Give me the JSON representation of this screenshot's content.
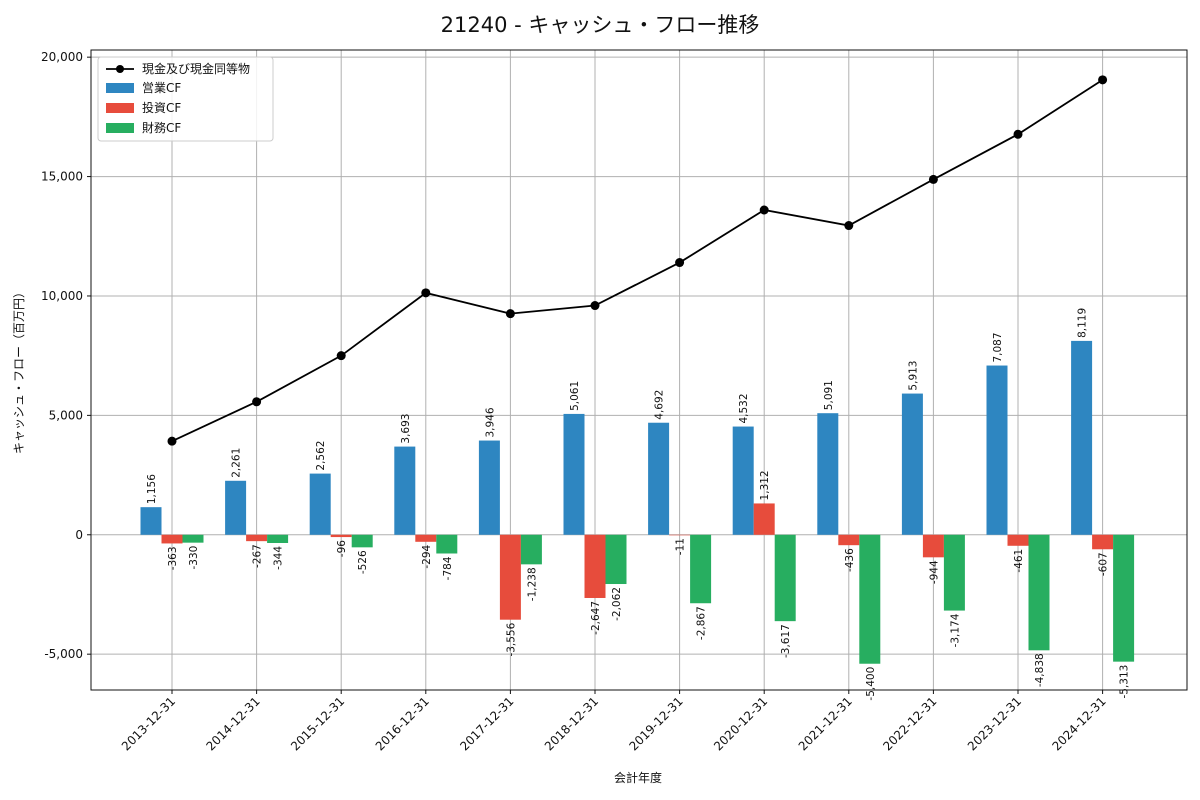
{
  "chart_data": {
    "type": "bar",
    "title": "21240 - キャッシュ・フロー推移",
    "xlabel": "会計年度",
    "ylabel": "キャッシュ・フロー（百万円）",
    "ylim": [
      -6500,
      20300
    ],
    "yticks": [
      -5000,
      0,
      5000,
      10000,
      15000,
      20000
    ],
    "ytick_labels": [
      "-5,000",
      "0",
      "5,000",
      "10,000",
      "15,000",
      "20,000"
    ],
    "grid": true,
    "legend_position": "top-left",
    "categories": [
      "2013-12-31",
      "2014-12-31",
      "2015-12-31",
      "2016-12-31",
      "2017-12-31",
      "2018-12-31",
      "2019-12-31",
      "2020-12-31",
      "2021-12-31",
      "2022-12-31",
      "2023-12-31",
      "2024-12-31"
    ],
    "line_series": {
      "name": "現金及び現金同等物",
      "color": "#000000",
      "values": [
        3920,
        5570,
        7500,
        10130,
        9260,
        9600,
        11400,
        13600,
        12950,
        14880,
        16770,
        19050
      ]
    },
    "series": [
      {
        "name": "営業CF",
        "color": "#2e86c1",
        "values": [
          1156,
          2261,
          2562,
          3693,
          3946,
          5061,
          4692,
          4532,
          5091,
          5913,
          7087,
          8119
        ],
        "labels": [
          "1,156",
          "2,261",
          "2,562",
          "3,693",
          "3,946",
          "5,061",
          "4,692",
          "4,532",
          "5,091",
          "5,913",
          "7,087",
          "8,119"
        ]
      },
      {
        "name": "投資CF",
        "color": "#e74c3c",
        "values": [
          -363,
          -267,
          -96,
          -294,
          -3556,
          -2647,
          -11,
          1312,
          -436,
          -944,
          -461,
          -607
        ],
        "labels": [
          "-363",
          "-267",
          "-96",
          "-294",
          "-3,556",
          "-2,647",
          "-11",
          "1,312",
          "-436",
          "-944",
          "-461",
          "-607"
        ]
      },
      {
        "name": "財務CF",
        "color": "#27ae60",
        "values": [
          -330,
          -344,
          -526,
          -784,
          -1238,
          -2062,
          -2867,
          -3617,
          -5400,
          -3174,
          -4838,
          -5313
        ],
        "labels": [
          "-330",
          "-344",
          "-526",
          "-784",
          "-1,238",
          "-2,062",
          "-2,867",
          "-3,617",
          "-5,400",
          "-3,174",
          "-4,838",
          "-5,313"
        ]
      }
    ]
  }
}
